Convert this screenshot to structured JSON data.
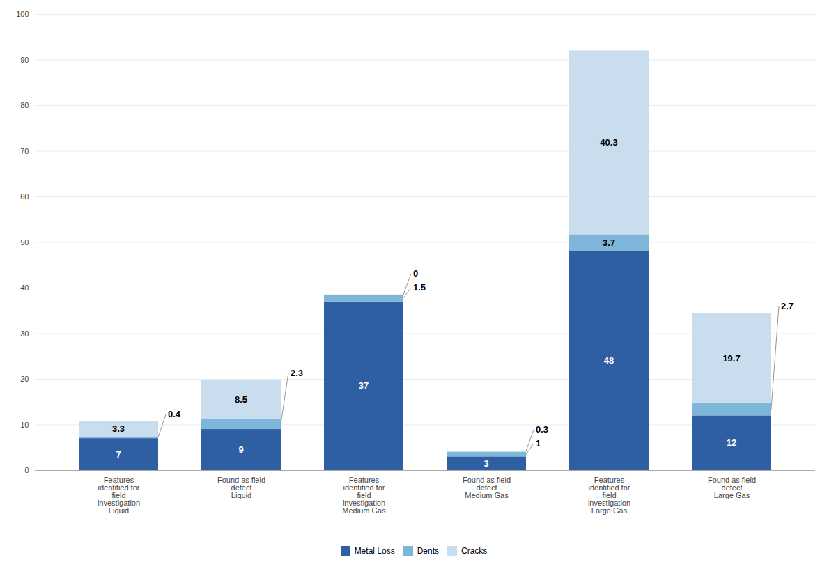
{
  "chart_data": {
    "type": "bar",
    "stacked": true,
    "categories": [
      "Features\nidentified for\nfield\ninvestigation\nLiquid",
      "Found as field\ndefect\nLiquid",
      "Features\nidentified for\nfield\ninvestigation\nMedium Gas",
      "Found as field\ndefect\nMedium Gas",
      "Features\nidentified for\nfield\ninvestigation\nLarge Gas",
      "Found as field\ndefect\nLarge Gas"
    ],
    "series": [
      {
        "name": "Metal Loss",
        "color": "#2E5FA3",
        "values": [
          7,
          9,
          37,
          3,
          48,
          12
        ]
      },
      {
        "name": "Dents",
        "color": "#7EB6D9",
        "values": [
          0.4,
          2.3,
          1.5,
          1,
          3.7,
          2.7
        ]
      },
      {
        "name": "Cracks",
        "color": "#C9DDEF",
        "values": [
          3.3,
          8.5,
          0,
          0.3,
          40.3,
          19.7
        ]
      }
    ],
    "ylim": [
      0,
      100
    ],
    "yticks": [
      0,
      10,
      20,
      30,
      40,
      50,
      60,
      70,
      80,
      90,
      100
    ],
    "grid": true,
    "data_labels": true,
    "legend": "bottom"
  }
}
